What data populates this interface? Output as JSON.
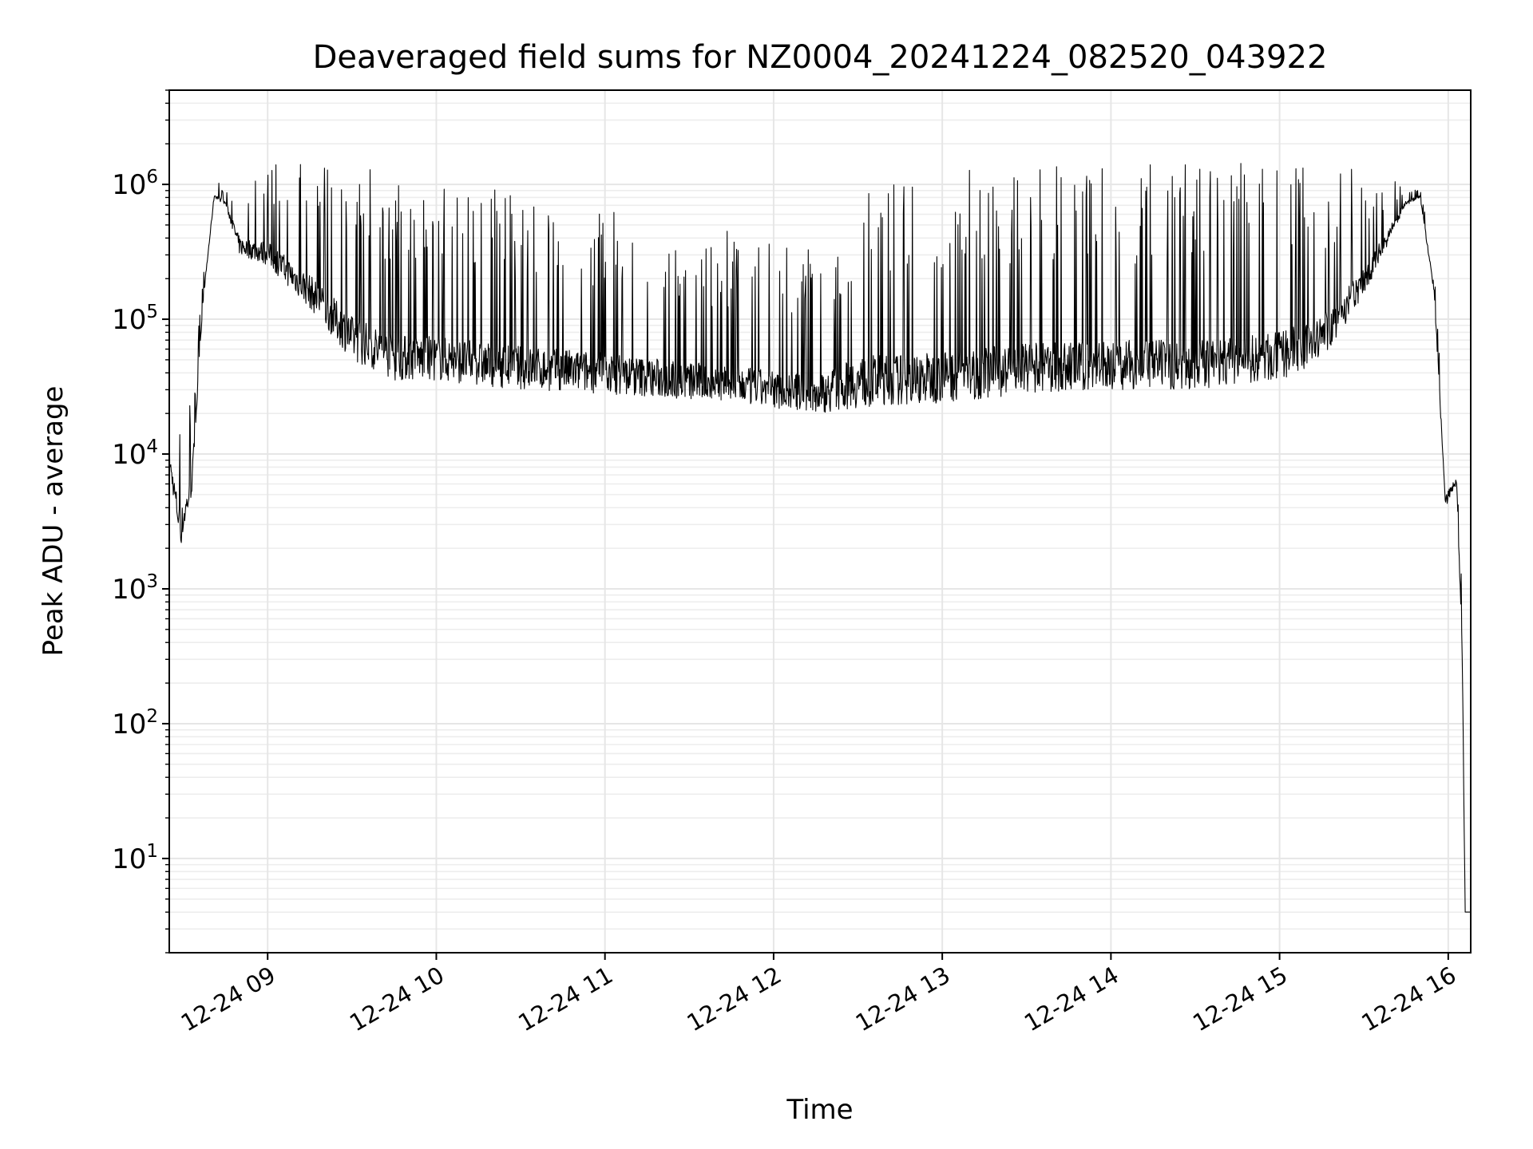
{
  "chart_data": {
    "type": "line",
    "title": "Deaveraged field sums for NZ0004_20241224_082520_043922",
    "xlabel": "Time",
    "ylabel": "Peak ADU - average",
    "yscale": "log",
    "grid": true,
    "ylim": [
      2,
      5000000
    ],
    "xlim": [
      "2024-12-24 08:25",
      "2024-12-24 16:08"
    ],
    "x_ticks": [
      {
        "at": "2024-12-24 09:00",
        "label": "12-24 09"
      },
      {
        "at": "2024-12-24 10:00",
        "label": "12-24 10"
      },
      {
        "at": "2024-12-24 11:00",
        "label": "12-24 11"
      },
      {
        "at": "2024-12-24 12:00",
        "label": "12-24 12"
      },
      {
        "at": "2024-12-24 13:00",
        "label": "12-24 13"
      },
      {
        "at": "2024-12-24 14:00",
        "label": "12-24 14"
      },
      {
        "at": "2024-12-24 15:00",
        "label": "12-24 15"
      },
      {
        "at": "2024-12-24 16:00",
        "label": "12-24 16"
      }
    ],
    "y_ticks": [
      {
        "value": 10,
        "base": "10",
        "exp": "1"
      },
      {
        "value": 100,
        "base": "10",
        "exp": "2"
      },
      {
        "value": 1000,
        "base": "10",
        "exp": "3"
      },
      {
        "value": 10000,
        "base": "10",
        "exp": "4"
      },
      {
        "value": 100000,
        "base": "10",
        "exp": "5"
      },
      {
        "value": 1000000,
        "base": "10",
        "exp": "6"
      }
    ],
    "line_color": "#000000",
    "series": [
      {
        "envelope": [
          {
            "time": "2024-12-24 08:25",
            "low": 8000,
            "high": 25000
          },
          {
            "time": "2024-12-24 08:29",
            "low": 2000,
            "high": 35000
          },
          {
            "time": "2024-12-24 08:33",
            "low": 5000,
            "high": 25000
          },
          {
            "time": "2024-12-24 08:37",
            "low": 130000,
            "high": 200000
          },
          {
            "time": "2024-12-24 08:41",
            "low": 800000,
            "high": 1100000
          },
          {
            "time": "2024-12-24 08:45",
            "low": 700000,
            "high": 1000000
          },
          {
            "time": "2024-12-24 08:50",
            "low": 300000,
            "high": 1200000
          },
          {
            "time": "2024-12-24 09:00",
            "low": 250000,
            "high": 1600000
          },
          {
            "time": "2024-12-24 09:15",
            "low": 120000,
            "high": 1700000
          },
          {
            "time": "2024-12-24 09:30",
            "low": 50000,
            "high": 1500000
          },
          {
            "time": "2024-12-24 09:45",
            "low": 35000,
            "high": 1300000
          },
          {
            "time": "2024-12-24 10:00",
            "low": 35000,
            "high": 1100000
          },
          {
            "time": "2024-12-24 10:30",
            "low": 30000,
            "high": 900000
          },
          {
            "time": "2024-12-24 11:00",
            "low": 28000,
            "high": 700000
          },
          {
            "time": "2024-12-24 11:30",
            "low": 25000,
            "high": 500000
          },
          {
            "time": "2024-12-24 12:00",
            "low": 22000,
            "high": 400000
          },
          {
            "time": "2024-12-24 12:15",
            "low": 20000,
            "high": 350000
          },
          {
            "time": "2024-12-24 12:30",
            "low": 22000,
            "high": 1200000
          },
          {
            "time": "2024-12-24 13:00",
            "low": 24000,
            "high": 1300000
          },
          {
            "time": "2024-12-24 13:30",
            "low": 28000,
            "high": 1400000
          },
          {
            "time": "2024-12-24 14:00",
            "low": 30000,
            "high": 1400000
          },
          {
            "time": "2024-12-24 14:30",
            "low": 30000,
            "high": 1400000
          },
          {
            "time": "2024-12-24 15:00",
            "low": 35000,
            "high": 1500000
          },
          {
            "time": "2024-12-24 15:15",
            "low": 50000,
            "high": 1450000
          },
          {
            "time": "2024-12-24 15:30",
            "low": 150000,
            "high": 1300000
          },
          {
            "time": "2024-12-24 15:45",
            "low": 700000,
            "high": 1000000
          },
          {
            "time": "2024-12-24 15:50",
            "low": 800000,
            "high": 950000
          },
          {
            "time": "2024-12-24 15:55",
            "low": 150000,
            "high": 300000
          },
          {
            "time": "2024-12-24 15:59",
            "low": 4000,
            "high": 12000
          },
          {
            "time": "2024-12-24 16:03",
            "low": 6000,
            "high": 10000
          },
          {
            "time": "2024-12-24 16:05",
            "low": 300,
            "high": 800
          },
          {
            "time": "2024-12-24 16:06",
            "low": 4,
            "high": 4
          },
          {
            "time": "2024-12-24 16:08",
            "low": 4,
            "high": 4
          }
        ]
      }
    ]
  }
}
